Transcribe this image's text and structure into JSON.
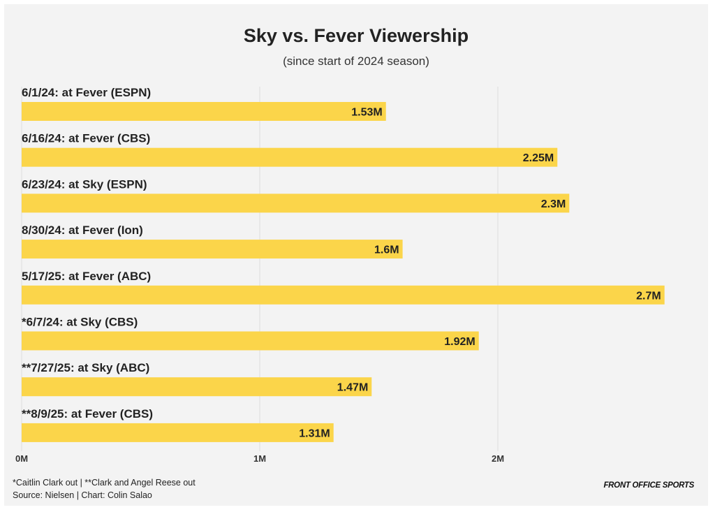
{
  "title": "Sky vs. Fever Viewership",
  "subtitle": "(since start of 2024 season)",
  "chart_data": {
    "type": "bar",
    "orientation": "horizontal",
    "categories": [
      "6/1/24: at Fever (ESPN)",
      "6/16/24: at Fever (CBS)",
      "6/23/24: at Sky (ESPN)",
      "8/30/24: at Fever (Ion)",
      "5/17/25: at Fever (ABC)",
      "*6/7/24: at Sky (CBS)",
      "**7/27/25: at Sky (ABC)",
      "**8/9/25: at Fever (CBS)"
    ],
    "values": [
      1.53,
      2.25,
      2.3,
      1.6,
      2.7,
      1.92,
      1.47,
      1.31
    ],
    "value_labels": [
      "1.53M",
      "2.25M",
      "2.3M",
      "1.6M",
      "2.7M",
      "1.92M",
      "1.47M",
      "1.31M"
    ],
    "x_ticks": [
      0,
      1,
      2
    ],
    "x_tick_labels": [
      "0M",
      "1M",
      "2M"
    ],
    "xlim": [
      0,
      2.93
    ],
    "grid": "vertical",
    "bar_color": "#fbd54a",
    "value_label_position": "inside-end"
  },
  "footnote": "*Caitlin Clark out | **Clark and Angel Reese out",
  "source": "Source: Nielsen | Chart: Colin Salao",
  "brand": "FRONT OFFICE SPORTS",
  "colors": {
    "background": "#f3f3f3",
    "bar": "#fbd54a",
    "text": "#222222",
    "grid": "#dddddd"
  }
}
